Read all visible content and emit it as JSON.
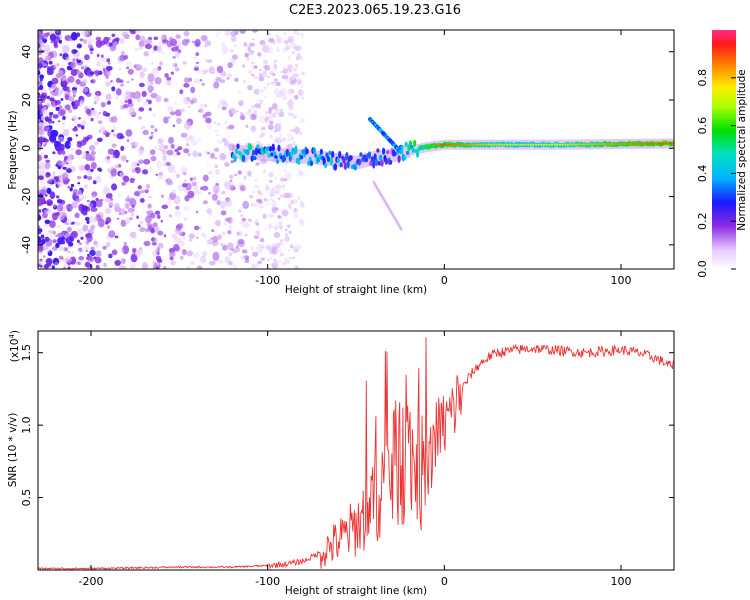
{
  "title": "C2E3.2023.065.19.23.G16",
  "chart_data": [
    {
      "type": "heatmap",
      "xlabel": "Height of straight line (km)",
      "ylabel": "Frequency (Hz)",
      "xlim": [
        -230,
        130
      ],
      "ylim": [
        -50,
        49
      ],
      "xticks": [
        -200,
        -100,
        0,
        100
      ],
      "xtick_labels": [
        "-200",
        "-100",
        "0",
        "100"
      ],
      "yticks": [
        -40,
        -20,
        0,
        20,
        40
      ],
      "ytick_labels": [
        "-40",
        "-20",
        "0",
        "20",
        "40"
      ],
      "colorbar": {
        "label": "Normalized spectral amplitude",
        "range": [
          0,
          1
        ],
        "ticks": [
          0.0,
          0.2,
          0.4,
          0.6,
          0.8
        ],
        "tick_labels": [
          "0.0",
          "0.2",
          "0.4",
          "0.6",
          "0.8"
        ]
      },
      "ridge": [
        [
          -120,
          -1.5,
          0.3
        ],
        [
          -110,
          -1.8,
          0.35
        ],
        [
          -100,
          -2.5,
          0.35
        ],
        [
          -90,
          -3,
          0.3
        ],
        [
          -80,
          -3.5,
          0.3
        ],
        [
          -70,
          -4,
          0.3
        ],
        [
          -60,
          -5,
          0.25
        ],
        [
          -50,
          -6,
          0.25
        ],
        [
          -40,
          -4,
          0.2
        ],
        [
          -30,
          -3,
          0.2
        ],
        [
          -20,
          -1,
          0.35
        ],
        [
          -10,
          0.5,
          0.55
        ],
        [
          0,
          1.5,
          0.6
        ],
        [
          20,
          1.5,
          0.5
        ],
        [
          40,
          1.5,
          0.45
        ],
        [
          60,
          1.5,
          0.45
        ],
        [
          80,
          1.6,
          0.5
        ],
        [
          100,
          1.8,
          0.55
        ],
        [
          120,
          1.9,
          0.6
        ],
        [
          130,
          2.0,
          0.6
        ]
      ]
    },
    {
      "type": "line",
      "xlabel": "Height of straight line (km)",
      "ylabel": "SNR (10 * v/v)",
      "yscale_label": "(x10",
      "yscale_exp": "4",
      "xlim": [
        -230,
        130
      ],
      "ylim": [
        0,
        1.65
      ],
      "xticks": [
        -200,
        -100,
        0,
        100
      ],
      "xtick_labels": [
        "-200",
        "-100",
        "0",
        "100"
      ],
      "yticks": [
        0.5,
        1.0,
        1.5
      ],
      "ytick_labels": [
        "0.5",
        "1.0",
        "1.5"
      ],
      "color": "#ee3333",
      "series": [
        {
          "name": "SNR",
          "x": [
            -230,
            -200,
            -150,
            -120,
            -100,
            -90,
            -80,
            -70,
            -60,
            -50,
            -45,
            -40,
            -35,
            -30,
            -25,
            -20,
            -15,
            -10,
            -5,
            0,
            5,
            10,
            15,
            20,
            25,
            30,
            40,
            50,
            60,
            70,
            80,
            90,
            100,
            110,
            120,
            130
          ],
          "values": [
            0.01,
            0.01,
            0.02,
            0.02,
            0.03,
            0.04,
            0.06,
            0.12,
            0.2,
            0.3,
            0.38,
            0.5,
            0.6,
            0.7,
            0.75,
            0.78,
            0.72,
            0.6,
            0.95,
            1.0,
            1.1,
            1.25,
            1.35,
            1.42,
            1.47,
            1.5,
            1.52,
            1.53,
            1.52,
            1.51,
            1.5,
            1.51,
            1.52,
            1.5,
            1.46,
            1.4
          ]
        }
      ]
    }
  ]
}
